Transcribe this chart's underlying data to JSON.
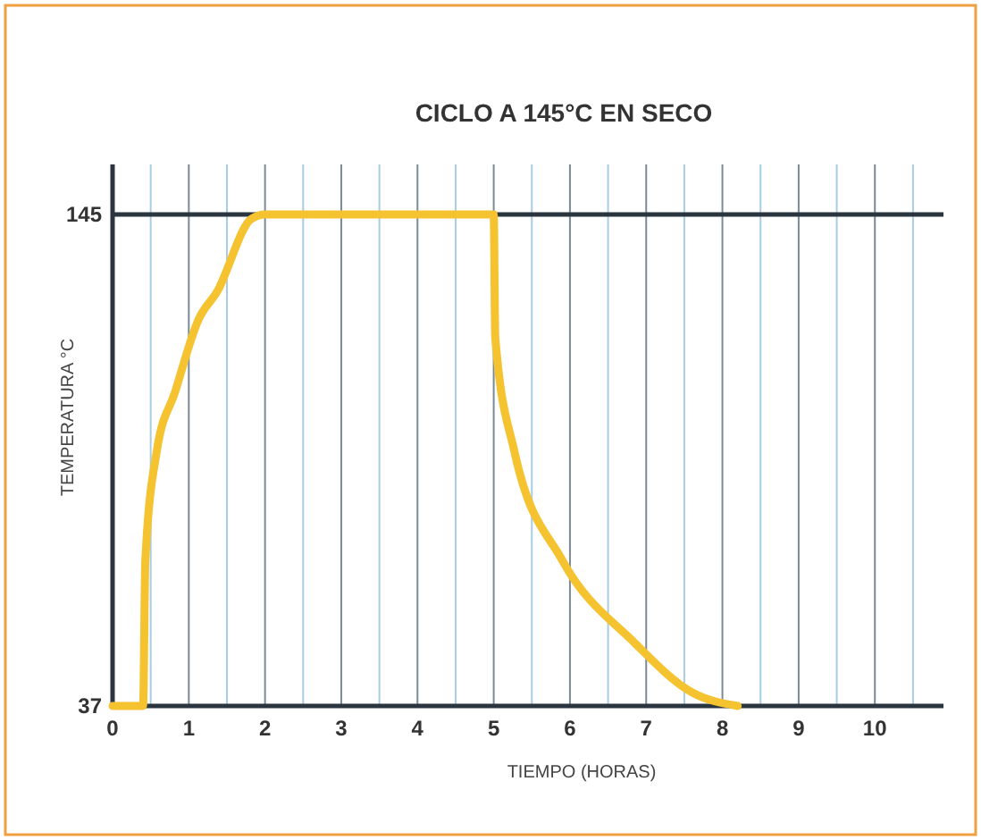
{
  "chart_data": {
    "type": "line",
    "title": "CICLO A 145°C EN SECO",
    "xlabel": "TIEMPO (HORAS)",
    "ylabel": "TEMPERATURA °C",
    "xlim": [
      0,
      10.9
    ],
    "ylim": [
      37,
      156
    ],
    "xticks": [
      0,
      {
        "value": 0.5,
        "label": null
      },
      1,
      {
        "value": 1.5,
        "label": null
      },
      2,
      {
        "value": 2.5,
        "label": null
      },
      3,
      {
        "value": 3.5,
        "label": null
      },
      4,
      {
        "value": 4.5,
        "label": null
      },
      5,
      {
        "value": 5.5,
        "label": null
      },
      6,
      {
        "value": 6.5,
        "label": null
      },
      7,
      {
        "value": 7.5,
        "label": null
      },
      8,
      {
        "value": 8.5,
        "label": null
      },
      9,
      {
        "value": 9.5,
        "label": null
      },
      10,
      {
        "value": 10.5,
        "label": null
      }
    ],
    "yticks": [
      37,
      145
    ],
    "grid": "x",
    "ref_lines": [
      {
        "axis": "y",
        "value": 145,
        "color": "#2a3540"
      }
    ],
    "marker": "none",
    "line_style": "solid",
    "series": [
      {
        "color": "#f5c230",
        "x": [
          0,
          0.4,
          0.43,
          0.58,
          0.82,
          1.13,
          1.37,
          1.82,
          2.0,
          5.0,
          5.02,
          5.27,
          5.9,
          6.84,
          7.6,
          8.2
        ],
        "values": [
          37,
          37,
          69,
          93,
          106,
          122,
          128,
          144,
          145,
          145,
          118,
          93,
          69,
          51,
          40,
          37
        ]
      }
    ]
  }
}
